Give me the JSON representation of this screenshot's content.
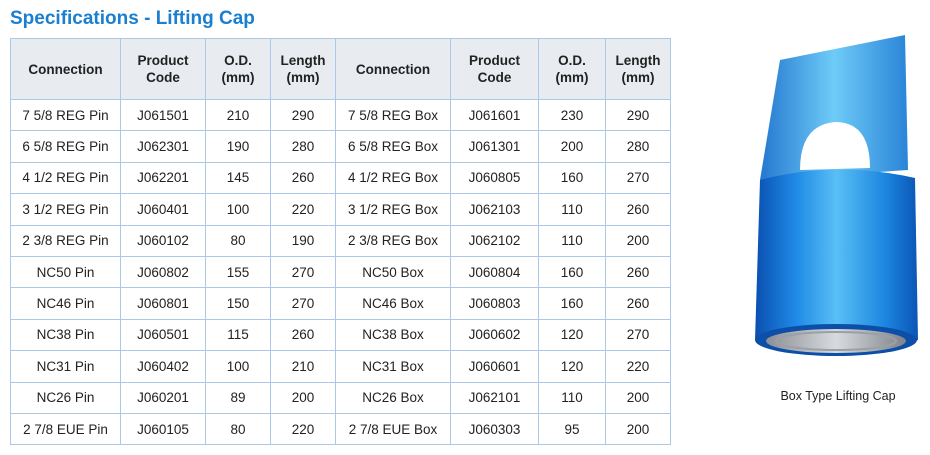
{
  "header": {
    "title": "Specifications - Lifting Cap"
  },
  "table": {
    "columns": [
      "Connection",
      "Product Code",
      "O.D. (mm)",
      "Length (mm)",
      "Connection",
      "Product Code",
      "O.D. (mm)",
      "Length (mm)"
    ],
    "rows": [
      [
        "7 5/8 REG Pin",
        "J061501",
        210,
        290,
        "7 5/8 REG Box",
        "J061601",
        230,
        290
      ],
      [
        "6 5/8 REG Pin",
        "J062301",
        190,
        280,
        "6 5/8 REG Box",
        "J061301",
        200,
        280
      ],
      [
        "4 1/2 REG Pin",
        "J062201",
        145,
        260,
        "4 1/2 REG Box",
        "J060805",
        160,
        270
      ],
      [
        "3 1/2 REG Pin",
        "J060401",
        100,
        220,
        "3 1/2 REG Box",
        "J062103",
        110,
        260
      ],
      [
        "2 3/8 REG Pin",
        "J060102",
        80,
        190,
        "2 3/8 REG Box",
        "J062102",
        110,
        200
      ],
      [
        "NC50 Pin",
        "J060802",
        155,
        270,
        "NC50 Box",
        "J060804",
        160,
        260
      ],
      [
        "NC46 Pin",
        "J060801",
        150,
        270,
        "NC46 Box",
        "J060803",
        160,
        260
      ],
      [
        "NC38 Pin",
        "J060501",
        115,
        260,
        "NC38 Box",
        "J060602",
        120,
        270
      ],
      [
        "NC31 Pin",
        "J060402",
        100,
        210,
        "NC31 Box",
        "J060601",
        120,
        220
      ],
      [
        "NC26 Pin",
        "J060201",
        89,
        200,
        "NC26 Box",
        "J062101",
        110,
        200
      ],
      [
        "2 7/8 EUE Pin",
        "J060105",
        80,
        220,
        "2 7/8 EUE Box",
        "J060303",
        95,
        200
      ]
    ]
  },
  "figure": {
    "caption": "Box Type Lifting Cap"
  }
}
